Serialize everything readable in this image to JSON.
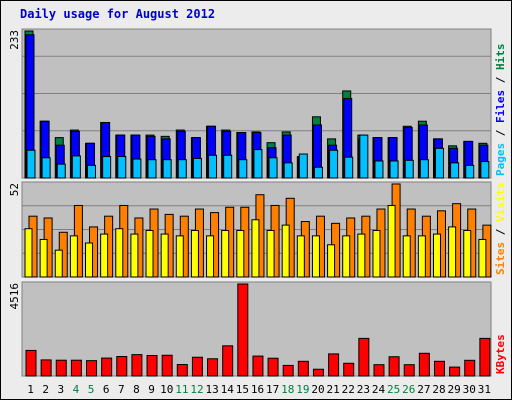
{
  "chart_data": {
    "type": "bar",
    "title": "Daily usage for August 2012",
    "days": [
      "1",
      "2",
      "3",
      "4",
      "5",
      "6",
      "7",
      "8",
      "9",
      "10",
      "11",
      "12",
      "13",
      "14",
      "15",
      "16",
      "17",
      "18",
      "19",
      "20",
      "21",
      "22",
      "23",
      "24",
      "25",
      "26",
      "27",
      "28",
      "29",
      "30",
      "31"
    ],
    "weekend_days": [
      "4",
      "5",
      "11",
      "12",
      "18",
      "19",
      "25",
      "26"
    ],
    "colors": {
      "hits": "#008040",
      "files": "#0000ff",
      "pages": "#00c0ff",
      "visits": "#ffff00",
      "sites": "#ff8000",
      "kbytes": "#ff0000",
      "weekday_label": "#000000",
      "weekend_label": "#008040",
      "title": "#0000cc"
    },
    "panels": [
      {
        "name": "hits-files-pages",
        "ymax": 233,
        "grid": true,
        "label_parts": [
          {
            "text": "Pages",
            "color": "#00c0ff"
          },
          {
            "text": " / ",
            "color": "#000000"
          },
          {
            "text": "Files",
            "color": "#0000ff"
          },
          {
            "text": " / ",
            "color": "#000000"
          },
          {
            "text": "Hits",
            "color": "#008040"
          }
        ],
        "series": [
          {
            "name": "Hits",
            "color": "#008040",
            "values": [
              233,
              90,
              64,
              76,
              55,
              88,
              68,
              68,
              68,
              66,
              76,
              64,
              82,
              76,
              72,
              73,
              56,
              73,
              34,
              97,
              62,
              138,
              68,
              64,
              64,
              82,
              90,
              62,
              51,
              58,
              55
            ]
          },
          {
            "name": "Files",
            "color": "#0000ff",
            "values": [
              227,
              90,
              52,
              74,
              55,
              88,
              68,
              68,
              66,
              62,
              74,
              64,
              82,
              74,
              72,
              72,
              48,
              68,
              34,
              84,
              52,
              126,
              62,
              64,
              64,
              80,
              84,
              62,
              47,
              58,
              52
            ]
          },
          {
            "name": "Pages",
            "color": "#00c0ff",
            "values": [
              44,
              32,
              22,
              35,
              20,
              34,
              34,
              30,
              29,
              29,
              29,
              31,
              36,
              36,
              29,
              45,
              32,
              24,
              38,
              17,
              44,
              33,
              68,
              27,
              27,
              28,
              29,
              47,
              24,
              20,
              26
            ]
          }
        ]
      },
      {
        "name": "visits-sites",
        "ymax": 52,
        "grid": true,
        "label_parts": [
          {
            "text": "Sites",
            "color": "#ff8000"
          },
          {
            "text": " / ",
            "color": "#000000"
          },
          {
            "text": "Visits",
            "color": "#ffff00"
          }
        ],
        "series": [
          {
            "name": "Sites",
            "color": "#ff8000",
            "values": [
              34,
              33,
              25,
              40,
              28,
              34,
              40,
              33,
              38,
              35,
              34,
              38,
              36,
              39,
              39,
              46,
              40,
              44,
              31,
              34,
              30,
              33,
              34,
              38,
              52,
              38,
              34,
              37,
              41,
              38,
              29
            ]
          },
          {
            "name": "Visits",
            "color": "#ffff00",
            "values": [
              27,
              21,
              15,
              23,
              19,
              24,
              27,
              24,
              26,
              24,
              23,
              26,
              23,
              26,
              26,
              32,
              26,
              29,
              23,
              23,
              18,
              23,
              24,
              26,
              40,
              23,
              23,
              24,
              28,
              26,
              21
            ]
          }
        ]
      },
      {
        "name": "kbytes",
        "ymax": 4516,
        "grid": false,
        "label_parts": [
          {
            "text": "KBytes",
            "color": "#ff0000"
          }
        ],
        "series": [
          {
            "name": "KBytes",
            "color": "#ff0000",
            "values": [
              1255,
              790,
              775,
              775,
              754,
              880,
              957,
              1050,
              1005,
              1018,
              563,
              920,
              846,
              1482,
              4516,
              978,
              872,
              520,
              721,
              332,
              1085,
              624,
              1847,
              555,
              946,
              555,
              1115,
              722,
              437,
              770,
              1847
            ]
          }
        ]
      }
    ]
  }
}
